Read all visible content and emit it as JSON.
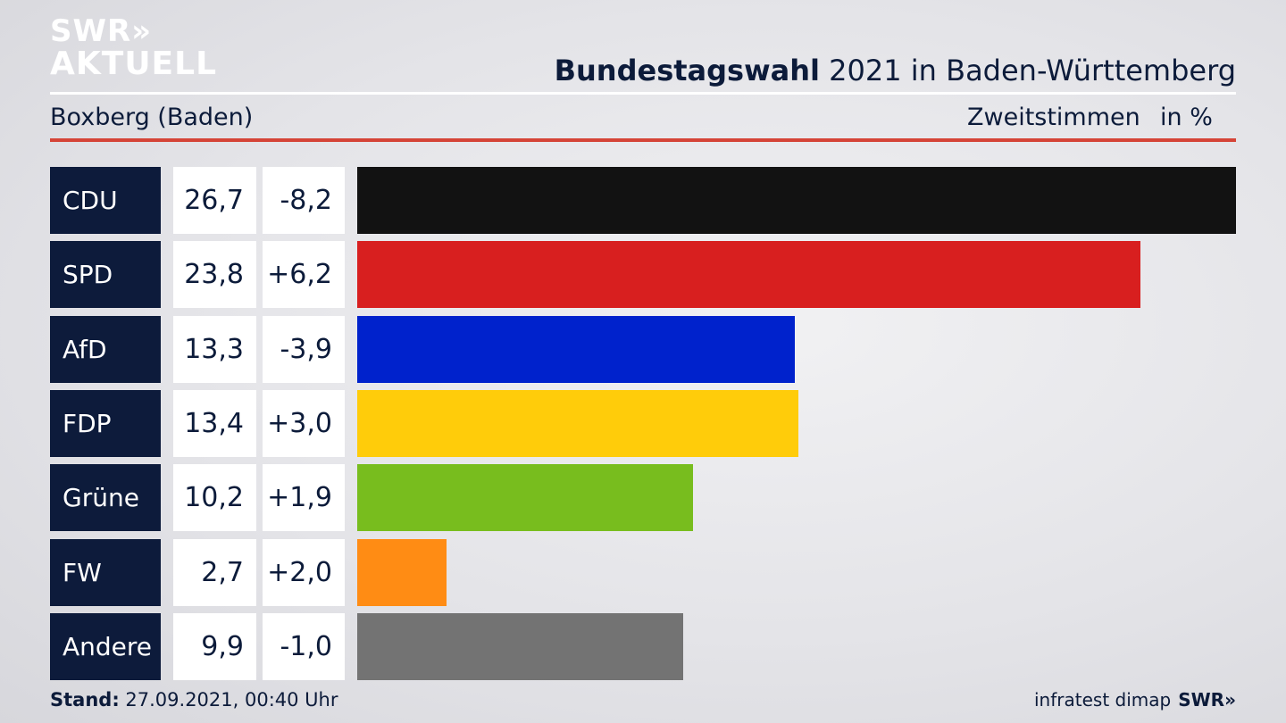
{
  "brand": {
    "logo_line1": "SWR»",
    "logo_line2": "AKTUELL",
    "footer_logo": "SWR»"
  },
  "header": {
    "title_bold": "Bundestagswahl",
    "title_rest": " 2021 in Baden-Württemberg",
    "place": "Boxberg (Baden)",
    "measure": "Zweitstimmen",
    "unit": "in %"
  },
  "footer": {
    "stand_label": "Stand:",
    "stand_value": " 27.09.2021, 00:40 Uhr",
    "source": "infratest dimap"
  },
  "colors": {
    "accent_red": "#d54437",
    "party_label_bg": "#0d1b3b"
  },
  "chart_data": {
    "type": "bar",
    "orientation": "horizontal",
    "categories": [
      "CDU",
      "SPD",
      "AfD",
      "FDP",
      "Grüne",
      "FW",
      "Andere"
    ],
    "values": [
      26.7,
      23.8,
      13.3,
      13.4,
      10.2,
      2.7,
      9.9
    ],
    "value_labels": [
      "26,7",
      "23,8",
      "13,3",
      "13,4",
      "10,2",
      "2,7",
      "9,9"
    ],
    "change_labels": [
      "-8,2",
      "+6,2",
      "-3,9",
      "+3,0",
      "+1,9",
      "+2,0",
      "-1,0"
    ],
    "changes": [
      -8.2,
      6.2,
      -3.9,
      3.0,
      1.9,
      2.0,
      -1.0
    ],
    "colors": [
      "#121212",
      "#d81f1f",
      "#0022cc",
      "#ffcc0a",
      "#78bd1e",
      "#ff8c14",
      "#737373"
    ],
    "xlim": [
      0,
      26.7
    ],
    "grid": false,
    "legend": "none"
  }
}
